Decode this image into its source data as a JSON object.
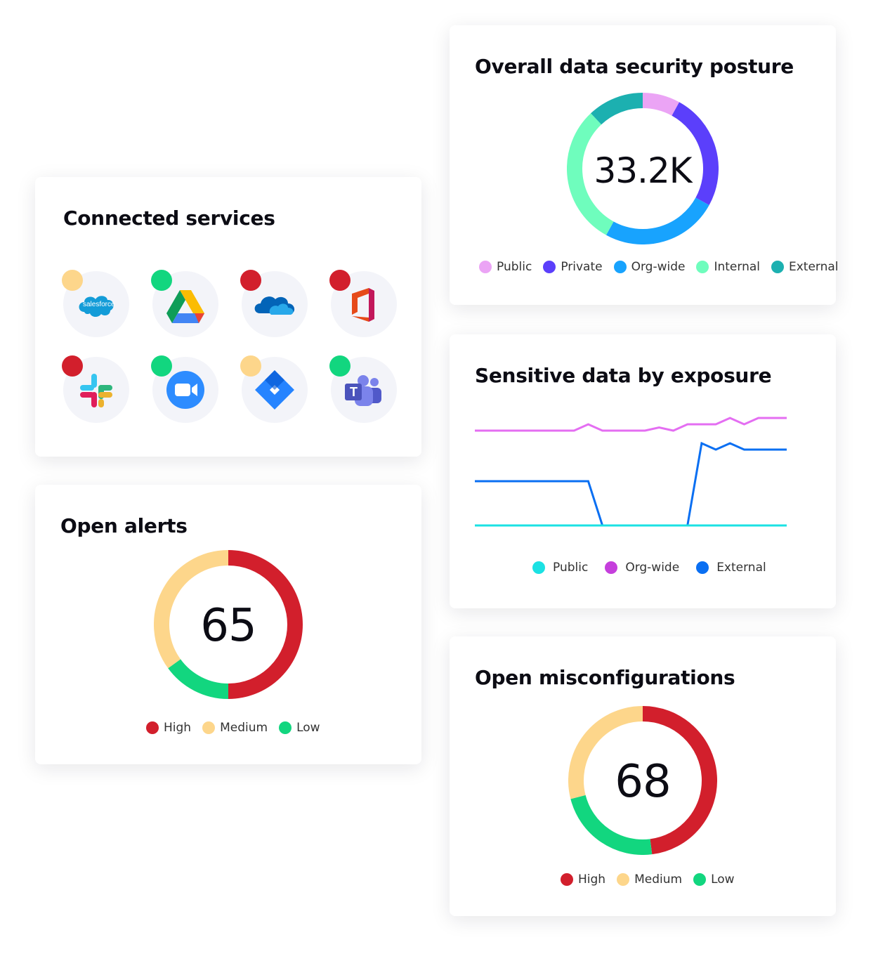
{
  "colors": {
    "high": "#d21f2c",
    "medium": "#fdd68b",
    "low": "#12d67f",
    "public_posture": "#eba4f5",
    "private": "#5b3ffb",
    "org_wide_posture": "#18a3fe",
    "internal": "#6ffdbd",
    "external_posture": "#1cb0b0",
    "exposure_public": "#1be1e3",
    "exposure_org_wide": "#c53fdc",
    "exposure_external": "#0a6ff2"
  },
  "posture": {
    "title": "Overall data security posture",
    "total": "33.2K",
    "chart_data": {
      "type": "pie",
      "categories": [
        "Public",
        "Private",
        "Org-wide",
        "Internal",
        "External"
      ],
      "values": [
        8,
        25,
        25,
        30,
        12
      ]
    },
    "legend": [
      {
        "label": "Public",
        "color": "#eba4f5"
      },
      {
        "label": "Private",
        "color": "#5b3ffb"
      },
      {
        "label": "Org-wide",
        "color": "#18a3fe"
      },
      {
        "label": "Internal",
        "color": "#6ffdbd"
      },
      {
        "label": "External",
        "color": "#1cb0b0"
      }
    ]
  },
  "services": {
    "title": "Connected services",
    "items": [
      {
        "icon": "salesforce-icon",
        "logo_text": "salesforce",
        "status": "medium"
      },
      {
        "icon": "google-drive-icon",
        "status": "low"
      },
      {
        "icon": "onedrive-icon",
        "status": "high"
      },
      {
        "icon": "office-icon",
        "status": "high"
      },
      {
        "icon": "slack-icon",
        "status": "high"
      },
      {
        "icon": "zoom-icon",
        "status": "low"
      },
      {
        "icon": "jira-icon",
        "status": "medium"
      },
      {
        "icon": "teams-icon",
        "logo_text": "T",
        "status": "low"
      }
    ]
  },
  "exposure": {
    "title": "Sensitive data by exposure",
    "chart_data": {
      "type": "line",
      "x": [
        0,
        1,
        2,
        3,
        4,
        5,
        6,
        7,
        8,
        9,
        10,
        11,
        12,
        13,
        14,
        15,
        16,
        17,
        18,
        19,
        20,
        21,
        22
      ],
      "series": [
        {
          "name": "Org-wide",
          "values": [
            30,
            30,
            30,
            30,
            30,
            30,
            30,
            30,
            32,
            30,
            30,
            30,
            30,
            31,
            30,
            32,
            32,
            32,
            34,
            32,
            34,
            34,
            34
          ]
        },
        {
          "name": "External",
          "values": [
            14,
            14,
            14,
            14,
            14,
            14,
            14,
            14,
            14,
            0,
            0,
            0,
            0,
            0,
            0,
            0,
            26,
            24,
            26,
            24,
            24,
            24,
            24
          ]
        },
        {
          "name": "Public",
          "values": [
            0,
            0,
            0,
            0,
            0,
            0,
            0,
            0,
            0,
            0,
            0,
            0,
            0,
            0,
            0,
            0,
            0,
            0,
            0,
            0,
            0,
            0,
            0
          ]
        }
      ]
    },
    "legend": [
      {
        "label": "Public",
        "color": "#1be1e3"
      },
      {
        "label": "Org-wide",
        "color": "#c53fdc"
      },
      {
        "label": "External",
        "color": "#0a6ff2"
      }
    ]
  },
  "alerts": {
    "title": "Open alerts",
    "total": "65",
    "chart_data": {
      "type": "pie",
      "categories": [
        "High",
        "Low",
        "Medium"
      ],
      "values": [
        50,
        15,
        35
      ]
    },
    "legend": [
      {
        "label": "High",
        "color": "#d21f2c"
      },
      {
        "label": "Medium",
        "color": "#fdd68b"
      },
      {
        "label": "Low",
        "color": "#12d67f"
      }
    ]
  },
  "misconfig": {
    "title": "Open misconfigurations",
    "total": "68",
    "chart_data": {
      "type": "pie",
      "categories": [
        "High",
        "Low",
        "Medium"
      ],
      "values": [
        48,
        23,
        29
      ]
    },
    "legend": [
      {
        "label": "High",
        "color": "#d21f2c"
      },
      {
        "label": "Medium",
        "color": "#fdd68b"
      },
      {
        "label": "Low",
        "color": "#12d67f"
      }
    ]
  }
}
